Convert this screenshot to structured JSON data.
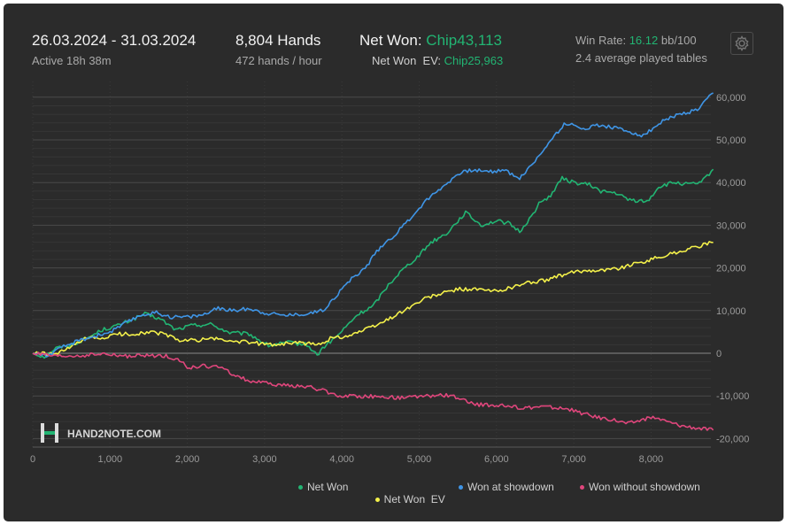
{
  "header": {
    "date_range": "26.03.2024 - 31.03.2024",
    "active": "Active 18h 38m",
    "hands": "8,804 Hands",
    "hands_per_hour": "472 hands / hour",
    "net_won_label": "Net Won:",
    "net_won_value": "Chip43,113",
    "net_won_ev_label": "Net Won  EV:",
    "net_won_ev_value": "Chip25,963",
    "win_rate_label": "Win Rate:",
    "win_rate_value": "16.12",
    "win_rate_unit": "bb/100",
    "avg_tables": "2.4 average played tables"
  },
  "watermark": "HAND2NOTE.COM",
  "colors": {
    "net_won": "#22b573",
    "net_won_ev": "#f3f04a",
    "won_showdown": "#3f95e6",
    "won_without_showdown": "#e0467c",
    "accent_green": "#22b573"
  },
  "icons": {
    "settings": "gear-icon",
    "logo": "hand2note-logo-icon"
  },
  "chart_data": {
    "type": "line",
    "x_ticks": [
      "0",
      "1,000",
      "2,000",
      "3,000",
      "4,000",
      "5,000",
      "6,000",
      "7,000",
      "8,000"
    ],
    "y_ticks": [
      "60,000",
      "50,000",
      "40,000",
      "30,000",
      "20,000",
      "10,000",
      "0",
      "-10,000",
      "-20,000"
    ],
    "xlim": [
      0,
      8804
    ],
    "ylim": [
      -21000,
      61000
    ],
    "grid": true,
    "legend_position": "bottom-right",
    "series": [
      {
        "name": "Net Won",
        "color": "#22b573",
        "points": [
          [
            0,
            0
          ],
          [
            150,
            -800
          ],
          [
            300,
            1200
          ],
          [
            500,
            2000
          ],
          [
            700,
            3500
          ],
          [
            900,
            5500
          ],
          [
            1100,
            6500
          ],
          [
            1300,
            8000
          ],
          [
            1450,
            9200
          ],
          [
            1650,
            8000
          ],
          [
            1850,
            5500
          ],
          [
            2050,
            6500
          ],
          [
            2300,
            6800
          ],
          [
            2550,
            4800
          ],
          [
            2800,
            4500
          ],
          [
            3050,
            1800
          ],
          [
            3300,
            2500
          ],
          [
            3550,
            2000
          ],
          [
            3680,
            -500
          ],
          [
            3750,
            1200
          ],
          [
            3950,
            4200
          ],
          [
            4200,
            9000
          ],
          [
            4400,
            11000
          ],
          [
            4600,
            16000
          ],
          [
            4750,
            19000
          ],
          [
            5000,
            23000
          ],
          [
            5150,
            26000
          ],
          [
            5350,
            28000
          ],
          [
            5500,
            31000
          ],
          [
            5600,
            33000
          ],
          [
            5800,
            30000
          ],
          [
            6000,
            31000
          ],
          [
            6150,
            30500
          ],
          [
            6300,
            28500
          ],
          [
            6450,
            32000
          ],
          [
            6550,
            35000
          ],
          [
            6700,
            37000
          ],
          [
            6850,
            41000
          ],
          [
            7000,
            40000
          ],
          [
            7200,
            39500
          ],
          [
            7350,
            38000
          ],
          [
            7550,
            37500
          ],
          [
            7700,
            36000
          ],
          [
            7950,
            35500
          ],
          [
            8100,
            39000
          ],
          [
            8300,
            40000
          ],
          [
            8500,
            39500
          ],
          [
            8650,
            40000
          ],
          [
            8804,
            43113
          ]
        ]
      },
      {
        "name": "Net Won  EV",
        "color": "#f3f04a",
        "points": [
          [
            0,
            0
          ],
          [
            300,
            -300
          ],
          [
            500,
            1500
          ],
          [
            700,
            3500
          ],
          [
            900,
            3500
          ],
          [
            1100,
            4500
          ],
          [
            1300,
            4500
          ],
          [
            1500,
            5000
          ],
          [
            1700,
            4500
          ],
          [
            1900,
            3000
          ],
          [
            2100,
            3000
          ],
          [
            2300,
            3500
          ],
          [
            2500,
            3000
          ],
          [
            2800,
            2500
          ],
          [
            3100,
            2000
          ],
          [
            3400,
            2500
          ],
          [
            3700,
            2000
          ],
          [
            3850,
            3500
          ],
          [
            4050,
            4000
          ],
          [
            4300,
            5500
          ],
          [
            4500,
            7000
          ],
          [
            4700,
            9000
          ],
          [
            4900,
            11000
          ],
          [
            5100,
            13000
          ],
          [
            5300,
            14000
          ],
          [
            5500,
            15000
          ],
          [
            5700,
            15000
          ],
          [
            6000,
            14500
          ],
          [
            6200,
            15500
          ],
          [
            6400,
            16500
          ],
          [
            6600,
            17000
          ],
          [
            6800,
            18000
          ],
          [
            7000,
            19000
          ],
          [
            7200,
            19500
          ],
          [
            7400,
            19500
          ],
          [
            7600,
            20000
          ],
          [
            7800,
            21000
          ],
          [
            8000,
            22000
          ],
          [
            8200,
            23000
          ],
          [
            8400,
            24000
          ],
          [
            8600,
            25000
          ],
          [
            8804,
            25963
          ]
        ]
      },
      {
        "name": "Won at showdown",
        "color": "#3f95e6",
        "points": [
          [
            0,
            0
          ],
          [
            200,
            -500
          ],
          [
            400,
            1500
          ],
          [
            600,
            3000
          ],
          [
            800,
            4000
          ],
          [
            1000,
            5000
          ],
          [
            1200,
            7000
          ],
          [
            1400,
            9000
          ],
          [
            1600,
            9500
          ],
          [
            1800,
            8500
          ],
          [
            2000,
            8500
          ],
          [
            2200,
            9000
          ],
          [
            2400,
            10500
          ],
          [
            2600,
            10000
          ],
          [
            2800,
            10500
          ],
          [
            3000,
            9500
          ],
          [
            3200,
            9000
          ],
          [
            3400,
            9000
          ],
          [
            3600,
            9500
          ],
          [
            3750,
            10000
          ],
          [
            3900,
            13000
          ],
          [
            4100,
            17000
          ],
          [
            4300,
            20000
          ],
          [
            4500,
            25000
          ],
          [
            4700,
            28000
          ],
          [
            4900,
            32000
          ],
          [
            5100,
            36000
          ],
          [
            5300,
            39000
          ],
          [
            5500,
            42000
          ],
          [
            5700,
            43000
          ],
          [
            5900,
            42500
          ],
          [
            6100,
            43000
          ],
          [
            6300,
            41000
          ],
          [
            6500,
            45000
          ],
          [
            6700,
            50000
          ],
          [
            6900,
            54000
          ],
          [
            7100,
            52500
          ],
          [
            7300,
            53500
          ],
          [
            7500,
            53000
          ],
          [
            7700,
            52000
          ],
          [
            7900,
            51000
          ],
          [
            8050,
            53000
          ],
          [
            8200,
            55000
          ],
          [
            8400,
            56000
          ],
          [
            8600,
            57000
          ],
          [
            8804,
            61000
          ]
        ]
      },
      {
        "name": "Won without showdown",
        "color": "#e0467c",
        "points": [
          [
            0,
            0
          ],
          [
            300,
            -800
          ],
          [
            600,
            -600
          ],
          [
            900,
            -200
          ],
          [
            1200,
            -700
          ],
          [
            1500,
            -600
          ],
          [
            1700,
            -600
          ],
          [
            1900,
            -1500
          ],
          [
            2000,
            -3500
          ],
          [
            2200,
            -3000
          ],
          [
            2400,
            -3200
          ],
          [
            2600,
            -5000
          ],
          [
            2800,
            -6500
          ],
          [
            3000,
            -7000
          ],
          [
            3200,
            -7500
          ],
          [
            3400,
            -7600
          ],
          [
            3600,
            -8000
          ],
          [
            3800,
            -9000
          ],
          [
            3950,
            -10000
          ],
          [
            4200,
            -10000
          ],
          [
            4500,
            -10200
          ],
          [
            4800,
            -10500
          ],
          [
            5100,
            -10000
          ],
          [
            5400,
            -9800
          ],
          [
            5700,
            -12000
          ],
          [
            6000,
            -12200
          ],
          [
            6300,
            -12800
          ],
          [
            6600,
            -12500
          ],
          [
            6900,
            -13000
          ],
          [
            7100,
            -14000
          ],
          [
            7300,
            -15000
          ],
          [
            7500,
            -15500
          ],
          [
            7700,
            -16500
          ],
          [
            7900,
            -15500
          ],
          [
            8050,
            -15000
          ],
          [
            8200,
            -16000
          ],
          [
            8400,
            -17000
          ],
          [
            8600,
            -17500
          ],
          [
            8804,
            -18000
          ]
        ]
      }
    ]
  },
  "legend": [
    "Net Won",
    "Net Won  EV",
    "Won at showdown",
    "Won without showdown"
  ]
}
